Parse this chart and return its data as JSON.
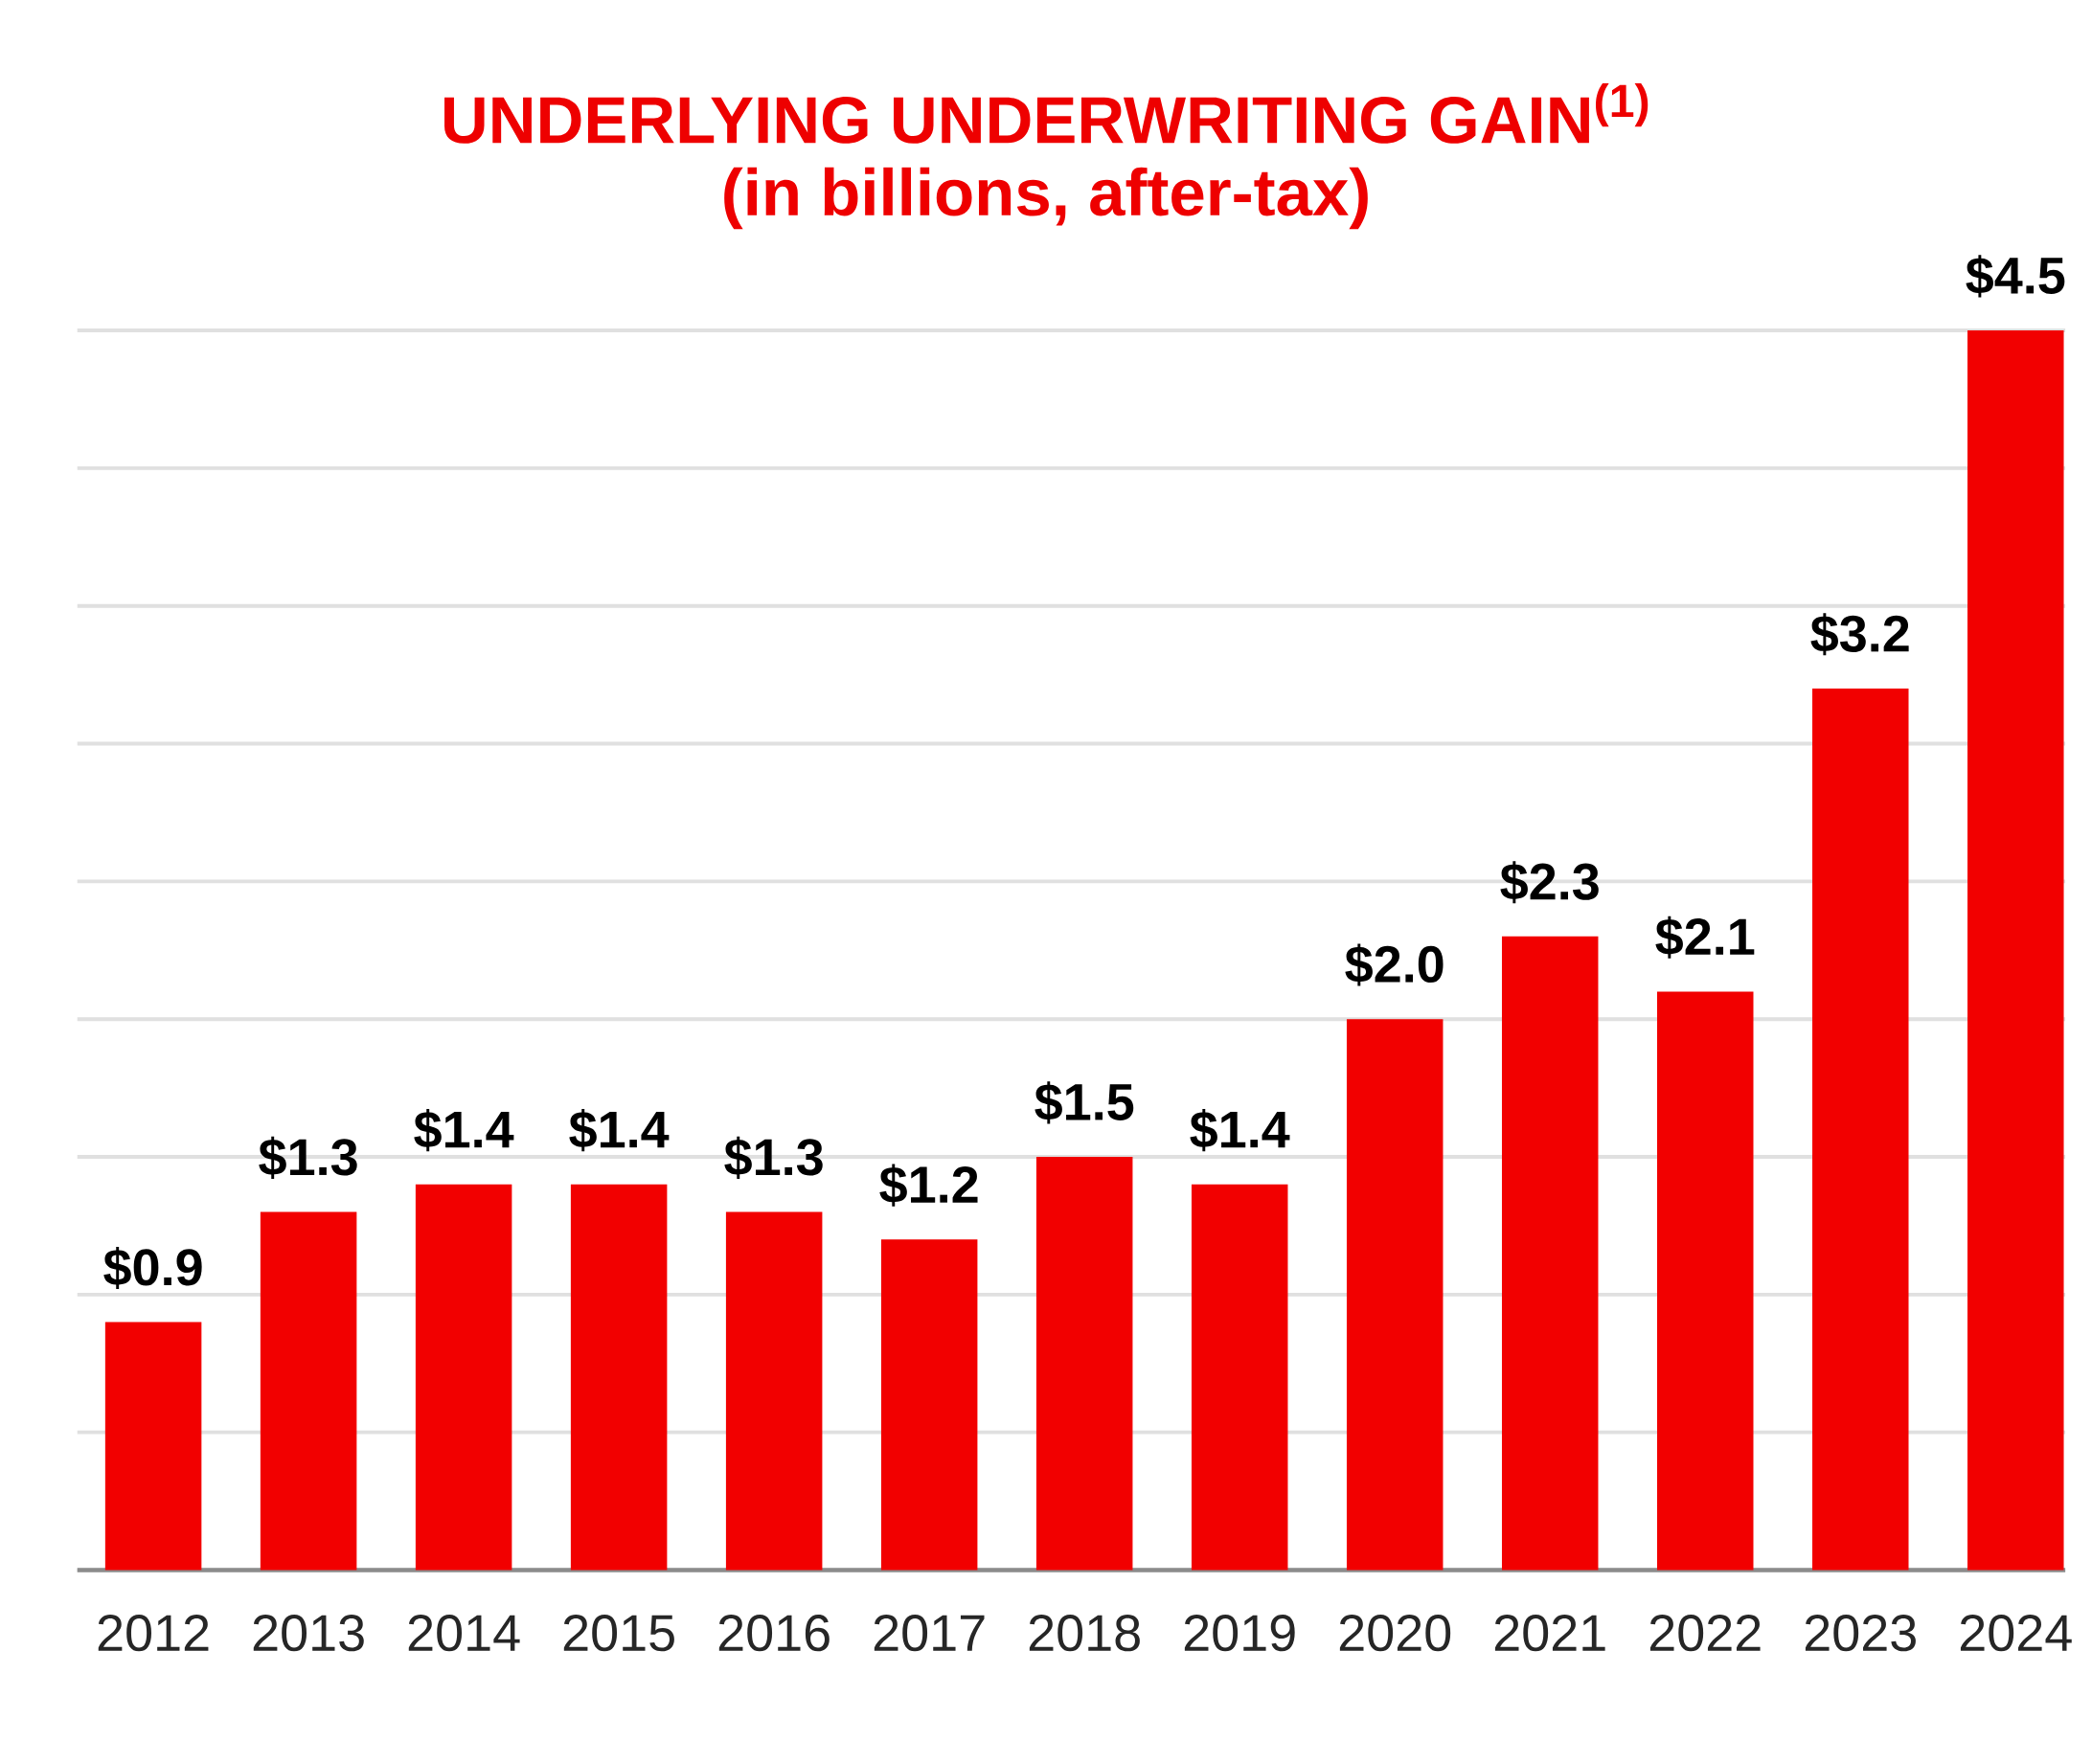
{
  "chart_data": {
    "type": "bar",
    "title": "UNDERLYING UNDERWRITING GAIN$^{(1)}$",
    "subtitle": "(in billions, after-tax)",
    "categories": [
      "2012",
      "2013",
      "2014",
      "2015",
      "2016",
      "2017",
      "2018",
      "2019",
      "2020",
      "2021",
      "2022",
      "2023",
      "2024"
    ],
    "values": [
      0.9,
      1.3,
      1.4,
      1.4,
      1.3,
      1.2,
      1.5,
      1.4,
      2.0,
      2.3,
      2.1,
      3.2,
      4.5
    ],
    "value_labels": [
      "$0.9",
      "$1.3",
      "$1.4",
      "$1.4",
      "$1.3",
      "$1.2",
      "$1.5",
      "$1.4",
      "$2.0",
      "$2.3",
      "$2.1",
      "$3.2",
      "$4.5"
    ],
    "color": "#f20000",
    "ylim": [
      0,
      4.5
    ],
    "yticks": [
      {
        "value": 0,
        "label": null
      },
      {
        "value": 0.5,
        "label": null
      },
      {
        "value": 1.0,
        "label": null
      },
      {
        "value": 1.5,
        "label": null
      },
      {
        "value": 2.0,
        "label": null
      },
      {
        "value": 2.5,
        "label": null
      },
      {
        "value": 3.0,
        "label": null
      },
      {
        "value": 3.5,
        "label": null
      },
      {
        "value": 4.0,
        "label": null
      },
      {
        "value": 4.5,
        "label": null
      }
    ],
    "grid": "y",
    "tick_labels": "x"
  }
}
